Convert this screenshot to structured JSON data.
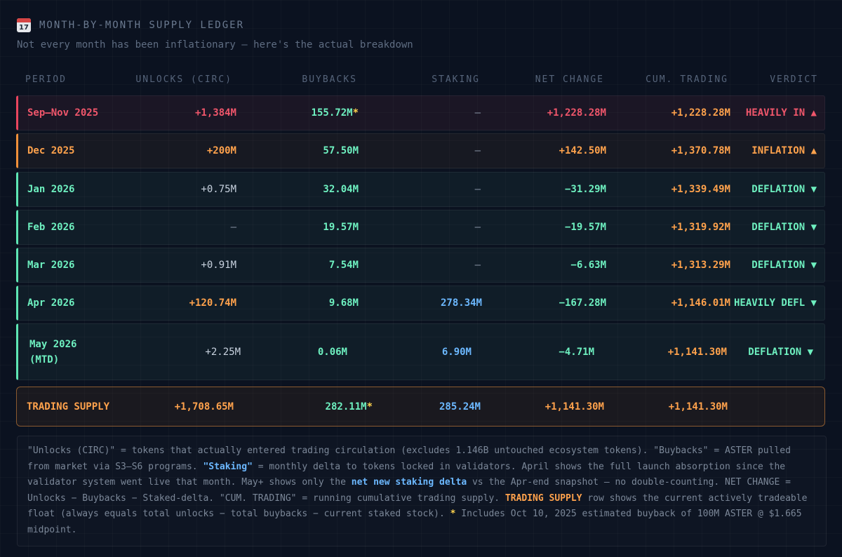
{
  "header": {
    "icon": "calendar-icon",
    "icon_day": "17",
    "title": "MONTH-BY-MONTH SUPPLY LEDGER",
    "subtitle": "Not every month has been inflationary — here's the actual breakdown"
  },
  "columns": {
    "period": "PERIOD",
    "unlocks": "UNLOCKS (CIRC)",
    "buybacks": "BUYBACKS",
    "staking": "STAKING",
    "net": "NET CHANGE",
    "cum": "CUM. TRADING",
    "verdict": "VERDICT"
  },
  "rows": [
    {
      "period": "Sep–Nov 2025",
      "unlocks": "+1,384M",
      "buybacks": "155.72M",
      "buyback_mark": "*",
      "staking": "–",
      "net": "+1,228.28M",
      "cum": "+1,228.28M",
      "verdict": "HEAVILY IN ▲"
    },
    {
      "period": "Dec 2025",
      "unlocks": "+200M",
      "buybacks": "57.50M",
      "staking": "–",
      "net": "+142.50M",
      "cum": "+1,370.78M",
      "verdict": "INFLATION ▲"
    },
    {
      "period": "Jan 2026",
      "unlocks": "+0.75M",
      "buybacks": "32.04M",
      "staking": "–",
      "net": "−31.29M",
      "cum": "+1,339.49M",
      "verdict": "DEFLATION ▼"
    },
    {
      "period": "Feb 2026",
      "unlocks": "–",
      "buybacks": "19.57M",
      "staking": "–",
      "net": "−19.57M",
      "cum": "+1,319.92M",
      "verdict": "DEFLATION ▼"
    },
    {
      "period": "Mar 2026",
      "unlocks": "+0.91M",
      "buybacks": "7.54M",
      "staking": "–",
      "net": "−6.63M",
      "cum": "+1,313.29M",
      "verdict": "DEFLATION ▼"
    },
    {
      "period": "Apr 2026",
      "unlocks": "+120.74M",
      "buybacks": "9.68M",
      "staking": "278.34M",
      "net": "−167.28M",
      "cum": "+1,146.01M",
      "verdict": "HEAVILY DEFL ▼"
    },
    {
      "period_line1": "May 2026",
      "period_line2": "(MTD)",
      "unlocks": "+2.25M",
      "buybacks": "0.06M",
      "staking": "6.90M",
      "net": "−4.71M",
      "cum": "+1,141.30M",
      "verdict": "DEFLATION ▼"
    }
  ],
  "total": {
    "label": "TRADING SUPPLY",
    "unlocks": "+1,708.65M",
    "buybacks": "282.11M",
    "buyback_mark": "*",
    "staking": "285.24M",
    "net": "+1,141.30M",
    "cum": "+1,141.30M"
  },
  "note": {
    "t1": "\"Unlocks (CIRC)\" = tokens that actually entered trading circulation (excludes 1.146B untouched ecosystem tokens). \"Buybacks\" = ASTER pulled from market via S3–S6 programs. ",
    "h1": "\"Staking\"",
    "t2": " = monthly delta to tokens locked in validators. April shows the full launch absorption since the validator system went live that month. May+ shows only the ",
    "h2": "net new staking delta",
    "t3": " vs the Apr-end snapshot — no double-counting. NET CHANGE = Unlocks − Buybacks − Staked-delta. \"CUM. TRADING\" = running cumulative trading supply. ",
    "h3": "TRADING SUPPLY",
    "t4": " row shows the current actively tradeable float (always equals total unlocks − total buybacks − current staked stock). ",
    "h4": "*",
    "t5": " Includes Oct 10, 2025 estimated buyback of 100M ASTER @ $1.665 midpoint."
  },
  "colors": {
    "inflation_red": "#f0566b",
    "inflation_orange": "#ffa24c",
    "deflation_green": "#6ef0c0",
    "staking_blue": "#6cb8ff",
    "asterisk_yellow": "#ffd24d"
  }
}
